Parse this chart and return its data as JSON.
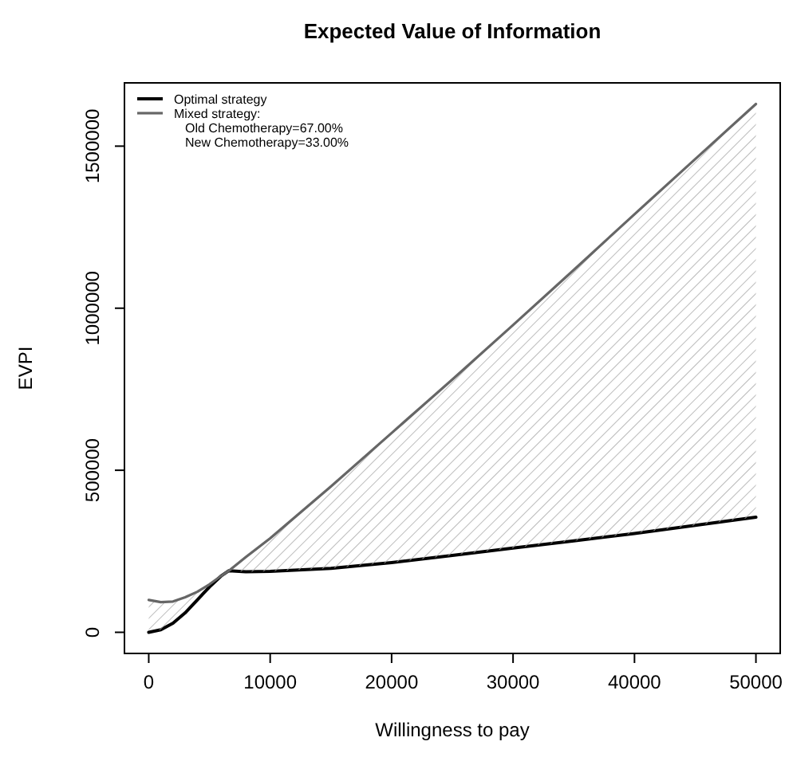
{
  "chart_data": {
    "type": "line",
    "title": "Expected Value of Information",
    "xlabel": "Willingness to pay",
    "ylabel": "EVPI",
    "x": [
      0,
      1000,
      2000,
      3000,
      4000,
      5000,
      6000,
      6600,
      8000,
      10000,
      15000,
      20000,
      25000,
      30000,
      35000,
      40000,
      45000,
      50000
    ],
    "series": [
      {
        "name": "Optimal strategy",
        "color": "#000000",
        "values": [
          0,
          8000,
          28000,
          60000,
          100000,
          140000,
          175000,
          190000,
          187000,
          188000,
          197000,
          215000,
          237000,
          260000,
          282000,
          305000,
          330000,
          355000
        ]
      },
      {
        "name": "Mixed strategy:",
        "color": "#666666",
        "values": [
          100000,
          93000,
          95000,
          108000,
          125000,
          148000,
          175000,
          190000,
          232000,
          290000,
          450000,
          615000,
          780000,
          948000,
          1118000,
          1290000,
          1460000,
          1630000
        ],
        "lower": [
          0,
          8000,
          28000,
          60000,
          100000,
          140000,
          175000,
          190000,
          187000,
          188000,
          197000,
          215000,
          237000,
          260000,
          282000,
          305000,
          330000,
          355000
        ],
        "upper": [
          100000,
          93000,
          95000,
          108000,
          125000,
          148000,
          175000,
          190000,
          232000,
          290000,
          450000,
          615000,
          780000,
          948000,
          1118000,
          1290000,
          1460000,
          1630000
        ]
      }
    ],
    "annotations": [
      "Old Chemotherapy=67.00%",
      "New Chemotherapy=33.00%"
    ],
    "xlim": [
      -2000,
      52000
    ],
    "ylim": [
      -65200,
      1695200
    ],
    "xticks": [
      0,
      10000,
      20000,
      30000,
      40000,
      50000
    ],
    "yticks": [
      0,
      500000,
      1000000,
      1500000
    ],
    "legend": "top left",
    "grid": false,
    "marker": "none",
    "line_style": "solid"
  }
}
